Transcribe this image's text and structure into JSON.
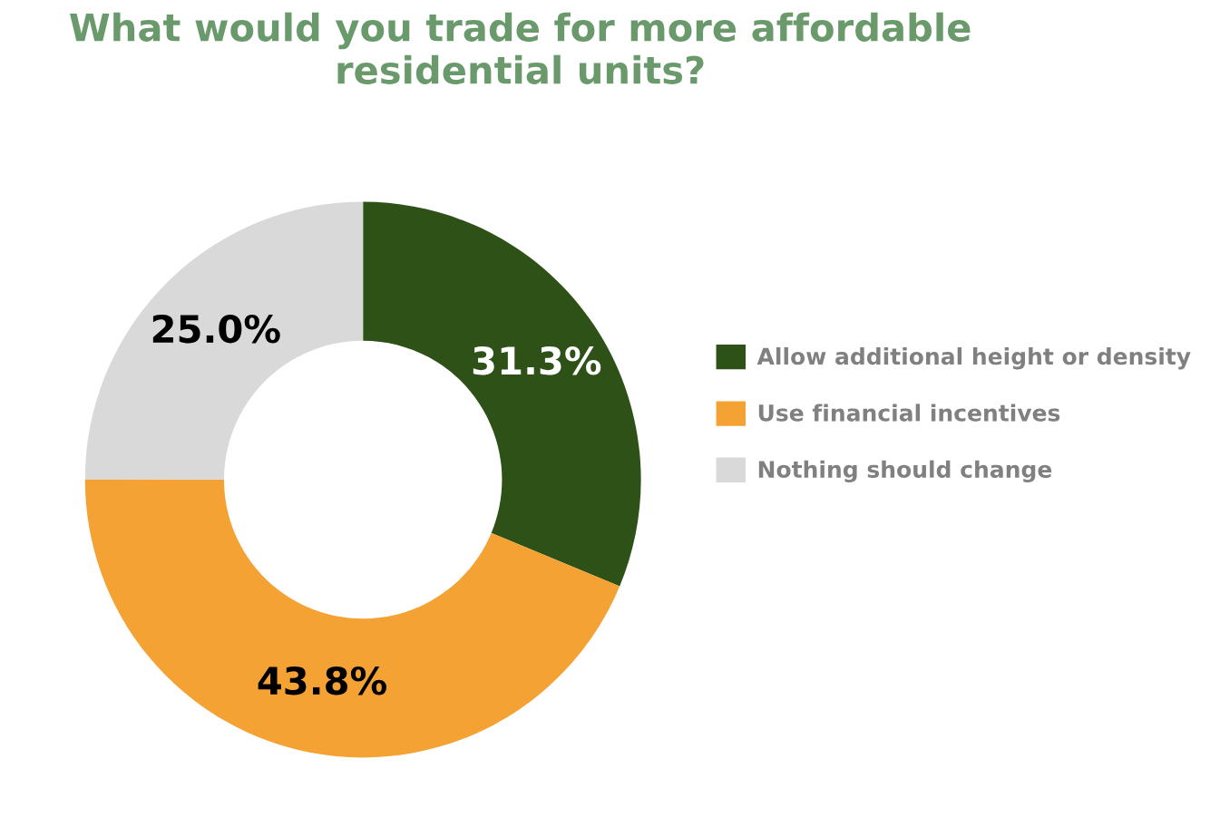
{
  "chart_data": {
    "type": "donut",
    "title": "What would you trade for more affordable residential units?",
    "categories": [
      "Allow additional height or density",
      "Use financial incentives",
      "Nothing should change"
    ],
    "values": [
      31.3,
      43.8,
      25.0
    ],
    "colors": [
      "#2d5116",
      "#f5a234",
      "#d9d9d9"
    ],
    "value_labels": [
      "31.3%",
      "43.8%",
      "25.0%"
    ],
    "legend": "right"
  }
}
